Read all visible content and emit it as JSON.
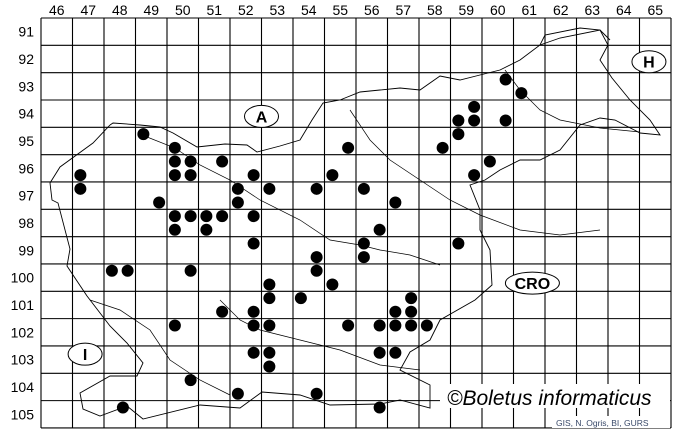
{
  "map": {
    "columns": [
      "46",
      "47",
      "48",
      "49",
      "50",
      "51",
      "52",
      "53",
      "54",
      "55",
      "56",
      "57",
      "58",
      "59",
      "60",
      "61",
      "62",
      "63",
      "64",
      "65"
    ],
    "rows": [
      "91",
      "92",
      "93",
      "94",
      "95",
      "96",
      "97",
      "98",
      "99",
      "100",
      "101",
      "102",
      "103",
      "104",
      "105"
    ],
    "regions": [
      {
        "label": "A",
        "col": 52.5,
        "row": 94.1
      },
      {
        "label": "H",
        "col": 64.8,
        "row": 92.1
      },
      {
        "label": "CRO",
        "col": 61.1,
        "row": 100.2
      },
      {
        "label": "I",
        "col": 46.9,
        "row": 102.8
      }
    ],
    "dot_color": "#000000",
    "dots": [
      [
        46.75,
        96.25
      ],
      [
        46.75,
        96.75
      ],
      [
        48.75,
        94.75
      ],
      [
        49.75,
        95.25
      ],
      [
        49.75,
        95.75
      ],
      [
        50.25,
        95.75
      ],
      [
        49.75,
        96.25
      ],
      [
        50.25,
        96.25
      ],
      [
        51.25,
        95.75
      ],
      [
        52.25,
        96.25
      ],
      [
        51.75,
        96.75
      ],
      [
        52.75,
        96.75
      ],
      [
        51.75,
        97.25
      ],
      [
        49.25,
        97.25
      ],
      [
        49.75,
        97.75
      ],
      [
        50.25,
        97.75
      ],
      [
        50.75,
        97.75
      ],
      [
        51.25,
        97.75
      ],
      [
        52.25,
        97.75
      ],
      [
        49.75,
        98.25
      ],
      [
        50.75,
        98.25
      ],
      [
        52.25,
        98.75
      ],
      [
        47.75,
        99.75
      ],
      [
        48.25,
        99.75
      ],
      [
        50.25,
        99.75
      ],
      [
        52.75,
        100.25
      ],
      [
        52.75,
        100.75
      ],
      [
        53.75,
        100.75
      ],
      [
        51.25,
        101.25
      ],
      [
        52.25,
        101.25
      ],
      [
        52.25,
        101.75
      ],
      [
        52.75,
        101.75
      ],
      [
        49.75,
        101.75
      ],
      [
        52.25,
        102.75
      ],
      [
        52.75,
        102.75
      ],
      [
        52.75,
        103.25
      ],
      [
        50.25,
        103.75
      ],
      [
        51.75,
        104.25
      ],
      [
        48.1,
        104.75
      ],
      [
        54.25,
        104.25
      ],
      [
        54.25,
        99.25
      ],
      [
        54.25,
        99.75
      ],
      [
        54.75,
        100.25
      ],
      [
        55.25,
        95.25
      ],
      [
        54.75,
        96.25
      ],
      [
        54.25,
        96.75
      ],
      [
        55.75,
        96.75
      ],
      [
        56.75,
        97.25
      ],
      [
        56.25,
        98.25
      ],
      [
        55.75,
        98.75
      ],
      [
        55.75,
        99.25
      ],
      [
        58.75,
        98.75
      ],
      [
        60.25,
        92.75
      ],
      [
        60.75,
        93.25
      ],
      [
        59.25,
        93.75
      ],
      [
        58.75,
        94.25
      ],
      [
        59.25,
        94.25
      ],
      [
        60.25,
        94.25
      ],
      [
        58.75,
        94.75
      ],
      [
        58.25,
        95.25
      ],
      [
        59.75,
        95.75
      ],
      [
        59.25,
        96.25
      ],
      [
        55.25,
        101.75
      ],
      [
        56.25,
        101.75
      ],
      [
        56.75,
        101.25
      ],
      [
        57.25,
        100.75
      ],
      [
        56.75,
        101.75
      ],
      [
        57.25,
        101.25
      ],
      [
        57.25,
        101.75
      ],
      [
        57.75,
        101.75
      ],
      [
        56.25,
        102.75
      ],
      [
        56.75,
        102.75
      ],
      [
        56.25,
        104.75
      ]
    ]
  },
  "watermark": "©Boletus informaticus",
  "credit": "GIS, N. Ogris, BI, GURS"
}
